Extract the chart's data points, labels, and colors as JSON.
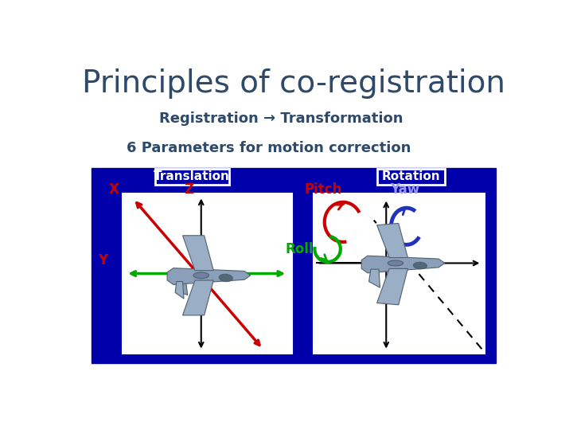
{
  "title": "Principles of co-registration",
  "title_color": "#2E4A6A",
  "subtitle": "Registration → Transformation",
  "subtitle_color": "#2E4A6A",
  "param_text": "6 Parameters for motion correction",
  "param_color": "#2E4A6A",
  "outer_bg": "#0000AA",
  "inner_white": "#FFFFFF",
  "white": "#FFFFFF",
  "translation_label": "Translation",
  "rotation_label": "Rotation",
  "x_label": "X",
  "y_label": "Y",
  "z_label": "Z",
  "pitch_label": "Pitch",
  "yaw_label": "Yaw",
  "roll_label": "Roll",
  "red": "#CC0000",
  "green": "#00AA00",
  "blue_arrow": "#2222CC",
  "plane_fill": "#8BA0B8",
  "plane_edge": "#506070"
}
